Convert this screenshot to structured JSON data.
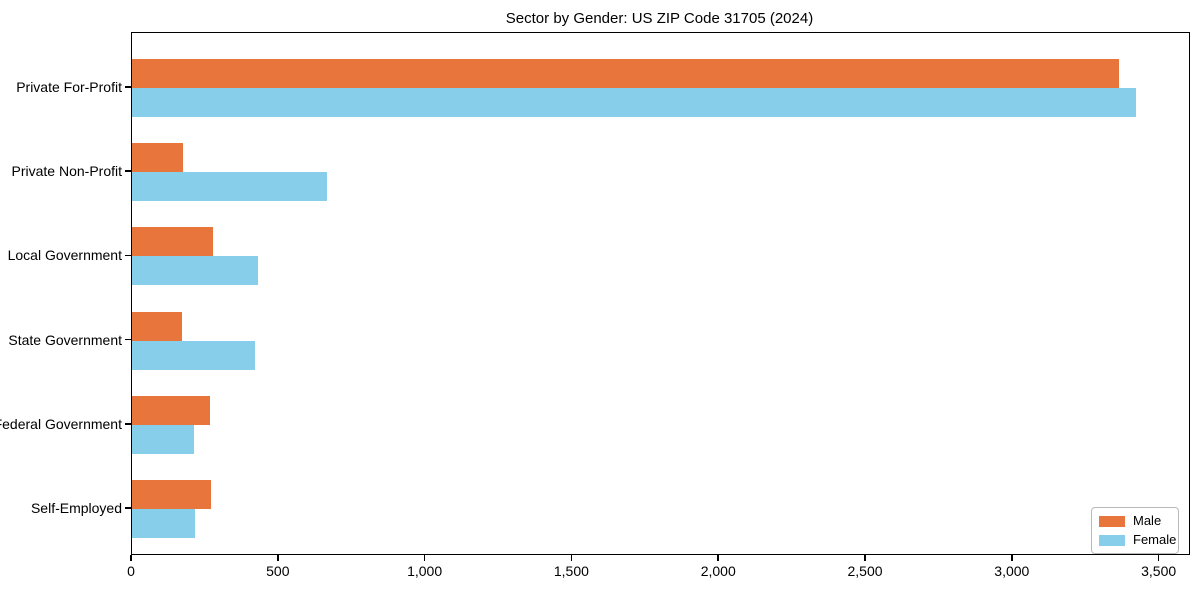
{
  "chart_data": {
    "type": "bar",
    "orientation": "horizontal",
    "title": "Sector by Gender: US ZIP Code 31705 (2024)",
    "categories": [
      "Private For-Profit",
      "Private Non-Profit",
      "Local Government",
      "State Government",
      "Federal Government",
      "Self-Employed"
    ],
    "series": [
      {
        "name": "Male",
        "color": "#E8763C",
        "values": [
          3360,
          175,
          275,
          170,
          265,
          270
        ]
      },
      {
        "name": "Female",
        "color": "#87CEEB",
        "values": [
          3420,
          665,
          430,
          420,
          210,
          215
        ]
      }
    ],
    "xlim": [
      0,
      3600
    ],
    "xticks": [
      0,
      500,
      1000,
      1500,
      2000,
      2500,
      3000,
      3500
    ],
    "xtick_labels": [
      "0",
      "500",
      "1,000",
      "1,500",
      "2,000",
      "2,500",
      "3,000",
      "3,500"
    ],
    "xlabel": "",
    "ylabel": "",
    "grid": false,
    "legend": {
      "position": "lower right",
      "entries": [
        "Male",
        "Female"
      ]
    },
    "colors": {
      "axis": "#000000",
      "background": "#FFFFFF",
      "legend_border": "#B9B9B9"
    }
  }
}
